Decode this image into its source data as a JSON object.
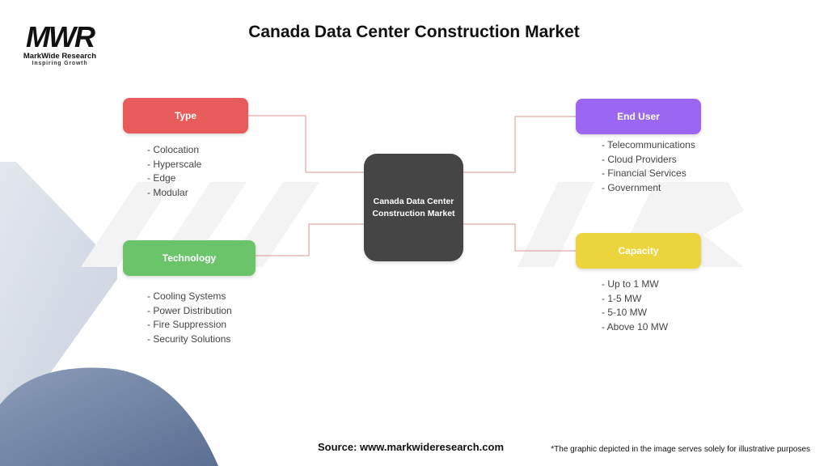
{
  "logo": {
    "mark": "MWR",
    "name": "MarkWide Research",
    "tagline": "Inspiring Growth"
  },
  "title": "Canada Data Center Construction Market",
  "center": "Canada Data Center Construction Market",
  "nodes": {
    "type": {
      "label": "Type",
      "color": "#e85b5b",
      "items": [
        "- Colocation",
        "- Hyperscale",
        "- Edge",
        "- Modular"
      ]
    },
    "technology": {
      "label": "Technology",
      "color": "#6cc46a",
      "items": [
        "- Cooling Systems",
        "- Power Distribution",
        "- Fire Suppression",
        "- Security Solutions"
      ]
    },
    "end_user": {
      "label": "End User",
      "color": "#9b66f2",
      "items": [
        "- Telecommunications",
        "- Cloud Providers",
        "- Financial Services",
        "- Government"
      ]
    },
    "capacity": {
      "label": "Capacity",
      "color": "#ecd43c",
      "items": [
        "- Up to 1 MW",
        "- 1-5 MW",
        "- 5-10 MW",
        "- Above 10 MW"
      ]
    }
  },
  "source": "Source: www.markwideresearch.com",
  "disclaimer": "*The graphic depicted in the image serves solely for illustrative purposes"
}
